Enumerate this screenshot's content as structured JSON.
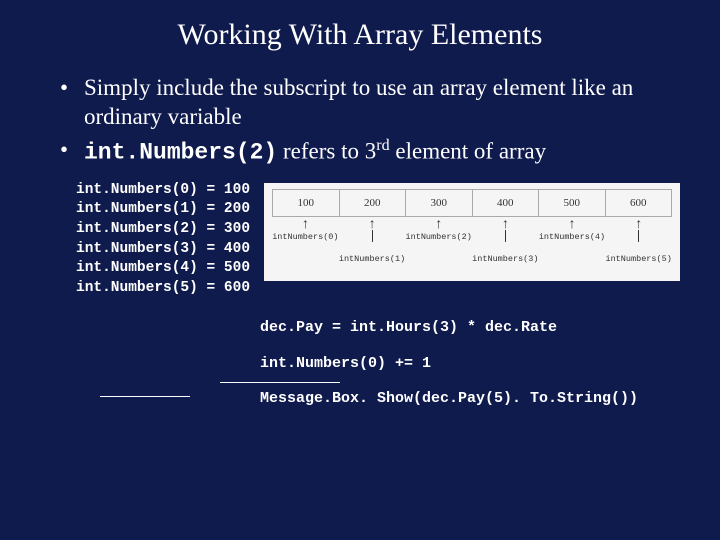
{
  "title": "Working With Array Elements",
  "bullet1": "Simply include the subscript to use an array element like an ordinary variable",
  "bullet2_code": "int.Numbers(2)",
  "bullet2_rest": " refers to 3",
  "bullet2_sup": "rd",
  "bullet2_end": " element of array",
  "assignments": [
    {
      "lhs": "int.Numbers(0)",
      "rhs": "100"
    },
    {
      "lhs": "int.Numbers(1)",
      "rhs": "200"
    },
    {
      "lhs": "int.Numbers(2)",
      "rhs": "300"
    },
    {
      "lhs": "int.Numbers(3)",
      "rhs": "400"
    },
    {
      "lhs": "int.Numbers(4)",
      "rhs": "500"
    },
    {
      "lhs": "int.Numbers(5)",
      "rhs": "600"
    }
  ],
  "diagram": {
    "cells": [
      "100",
      "200",
      "300",
      "400",
      "500",
      "600"
    ],
    "labels": [
      "intNumbers(0)",
      "intNumbers(1)",
      "intNumbers(2)",
      "intNumbers(3)",
      "intNumbers(4)",
      "intNumbers(5)"
    ]
  },
  "snippets": [
    "dec.Pay = int.Hours(3) * dec.Rate",
    "int.Numbers(0) += 1",
    "Message.Box. Show(dec.Pay(5). To.String())"
  ],
  "colors": {
    "background": "#0f1a4d",
    "text": "#ffffff",
    "diagram_bg": "#f5f5f5",
    "diagram_border": "#aaaaaa",
    "diagram_text": "#333333"
  }
}
